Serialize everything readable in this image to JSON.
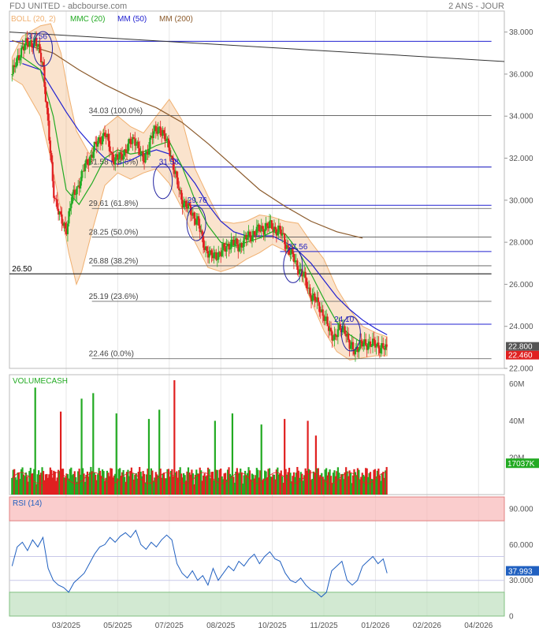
{
  "header": {
    "title": "FDJ UNITED - abcbourse.com",
    "period": "2 ANS - JOUR"
  },
  "legend": [
    {
      "label": "BOLL (20, 2)",
      "color": "#f0b070"
    },
    {
      "label": "MMC (20)",
      "color": "#22aa22"
    },
    {
      "label": "MM (50)",
      "color": "#2020d0"
    },
    {
      "label": "MM (200)",
      "color": "#8b5a2b"
    }
  ],
  "colors": {
    "up": "#22aa22",
    "down": "#e02020",
    "boll": "#f0b070",
    "mmc": "#22aa22",
    "mm50": "#2020d0",
    "mm200": "#8b5a2b",
    "rsi": "#2060c0"
  },
  "chart_data": [
    {
      "type": "candlestick",
      "ylim": [
        22,
        39
      ],
      "y_ticks": [
        "22.000",
        "24.000",
        "26.000",
        "28.000",
        "30.000",
        "32.000",
        "34.000",
        "36.000",
        "38.000"
      ],
      "x_ticks": [
        "03/2025",
        "05/2025",
        "07/2025",
        "08/2025",
        "10/2025",
        "11/2025",
        "01/2026",
        "02/2026",
        "04/2026"
      ],
      "x_tick_pos": [
        0.5,
        2.5,
        4.5,
        6.5,
        8.5,
        10.5,
        12.5,
        14.5,
        16.5
      ],
      "x_range": [
        -1.7,
        17.5
      ],
      "close_path": [
        [
          -1.6,
          36.0
        ],
        [
          -1.2,
          37.3
        ],
        [
          -0.7,
          37.6
        ],
        [
          -0.4,
          36.5
        ],
        [
          -0.2,
          33.5
        ],
        [
          0.0,
          30.5
        ],
        [
          0.3,
          29.0
        ],
        [
          0.5,
          28.6
        ],
        [
          0.7,
          30.0
        ],
        [
          0.9,
          30.5
        ],
        [
          1.2,
          31.5
        ],
        [
          1.6,
          32.5
        ],
        [
          2.0,
          33.2
        ],
        [
          2.3,
          32.0
        ],
        [
          2.6,
          32.0
        ],
        [
          2.9,
          32.6
        ],
        [
          3.2,
          32.9
        ],
        [
          3.5,
          31.8
        ],
        [
          3.8,
          33.0
        ],
        [
          4.1,
          33.5
        ],
        [
          4.5,
          32.5
        ],
        [
          4.8,
          30.8
        ],
        [
          5.0,
          30.0
        ],
        [
          5.3,
          29.5
        ],
        [
          5.6,
          29.0
        ],
        [
          5.8,
          28.0
        ],
        [
          6.1,
          27.3
        ],
        [
          6.5,
          27.5
        ],
        [
          6.9,
          28.0
        ],
        [
          7.2,
          27.8
        ],
        [
          7.6,
          28.3
        ],
        [
          8.0,
          28.6
        ],
        [
          8.4,
          28.8
        ],
        [
          8.8,
          28.5
        ],
        [
          9.2,
          27.5
        ],
        [
          9.5,
          26.8
        ],
        [
          9.7,
          26.4
        ],
        [
          10.0,
          25.5
        ],
        [
          10.3,
          25.0
        ],
        [
          10.5,
          24.5
        ],
        [
          10.7,
          23.8
        ],
        [
          10.9,
          23.5
        ],
        [
          11.1,
          23.8
        ],
        [
          11.3,
          24.0
        ],
        [
          11.5,
          23.0
        ],
        [
          11.7,
          22.9
        ],
        [
          11.9,
          23.1
        ],
        [
          12.2,
          23.2
        ],
        [
          12.5,
          23.1
        ],
        [
          12.8,
          23.0
        ],
        [
          12.95,
          22.8
        ]
      ],
      "mmc_path": [
        [
          -1.2,
          36.8
        ],
        [
          -0.5,
          36.2
        ],
        [
          0.0,
          34.0
        ],
        [
          0.5,
          30.5
        ],
        [
          1.0,
          29.8
        ],
        [
          1.5,
          30.8
        ],
        [
          2.0,
          32.0
        ],
        [
          2.5,
          32.4
        ],
        [
          3.0,
          32.2
        ],
        [
          3.5,
          32.3
        ],
        [
          4.0,
          32.6
        ],
        [
          4.5,
          32.8
        ],
        [
          5.0,
          31.6
        ],
        [
          5.5,
          30.0
        ],
        [
          6.0,
          28.8
        ],
        [
          6.5,
          28.0
        ],
        [
          7.0,
          27.8
        ],
        [
          7.5,
          28.0
        ],
        [
          8.0,
          28.2
        ],
        [
          8.5,
          28.5
        ],
        [
          9.0,
          28.4
        ],
        [
          9.5,
          27.6
        ],
        [
          10.0,
          26.5
        ],
        [
          10.5,
          25.3
        ],
        [
          11.0,
          24.2
        ],
        [
          11.5,
          23.6
        ],
        [
          12.0,
          23.2
        ],
        [
          12.5,
          23.1
        ],
        [
          12.95,
          23.0
        ]
      ],
      "boll_upper": [
        [
          -1.6,
          36.8
        ],
        [
          -1.2,
          37.8
        ],
        [
          -0.5,
          38.3
        ],
        [
          -0.1,
          38.4
        ],
        [
          0.3,
          37.0
        ],
        [
          0.6,
          35.0
        ],
        [
          0.9,
          33.3
        ],
        [
          1.4,
          32.2
        ],
        [
          2.0,
          33.5
        ],
        [
          2.5,
          34.0
        ],
        [
          3.0,
          33.5
        ],
        [
          3.5,
          33.2
        ],
        [
          4.0,
          34.0
        ],
        [
          4.5,
          34.8
        ],
        [
          5.0,
          33.8
        ],
        [
          5.5,
          31.5
        ],
        [
          6.0,
          30.2
        ],
        [
          6.5,
          29.0
        ],
        [
          7.0,
          28.9
        ],
        [
          7.5,
          29.0
        ],
        [
          8.0,
          29.3
        ],
        [
          8.5,
          29.2
        ],
        [
          9.0,
          29.0
        ],
        [
          9.5,
          28.9
        ],
        [
          10.0,
          28.0
        ],
        [
          10.5,
          27.2
        ],
        [
          11.0,
          25.8
        ],
        [
          11.5,
          24.8
        ],
        [
          12.0,
          24.0
        ],
        [
          12.5,
          23.7
        ],
        [
          12.95,
          23.5
        ]
      ],
      "boll_lower": [
        [
          -1.6,
          35.8
        ],
        [
          -1.2,
          35.5
        ],
        [
          -0.5,
          34.0
        ],
        [
          -0.1,
          32.0
        ],
        [
          0.3,
          29.5
        ],
        [
          0.6,
          27.5
        ],
        [
          0.9,
          26.0
        ],
        [
          1.1,
          26.6
        ],
        [
          1.5,
          28.5
        ],
        [
          2.0,
          30.7
        ],
        [
          2.5,
          31.3
        ],
        [
          3.0,
          31.0
        ],
        [
          3.5,
          31.3
        ],
        [
          4.0,
          31.5
        ],
        [
          4.5,
          30.8
        ],
        [
          5.0,
          29.6
        ],
        [
          5.5,
          28.0
        ],
        [
          6.0,
          26.8
        ],
        [
          6.5,
          26.6
        ],
        [
          7.0,
          26.8
        ],
        [
          7.5,
          27.2
        ],
        [
          8.0,
          27.5
        ],
        [
          8.5,
          27.9
        ],
        [
          9.0,
          27.6
        ],
        [
          9.5,
          26.8
        ],
        [
          10.0,
          25.2
        ],
        [
          10.5,
          23.8
        ],
        [
          11.0,
          22.8
        ],
        [
          11.5,
          22.4
        ],
        [
          12.0,
          22.5
        ],
        [
          12.5,
          22.6
        ],
        [
          12.95,
          22.6
        ]
      ],
      "mm50_path": [
        [
          -1.2,
          36.5
        ],
        [
          -0.5,
          36.2
        ],
        [
          0.0,
          35.2
        ],
        [
          0.5,
          34.2
        ],
        [
          1.0,
          33.3
        ],
        [
          1.5,
          32.6
        ],
        [
          2.0,
          32.0
        ],
        [
          2.5,
          31.7
        ],
        [
          3.0,
          31.9
        ],
        [
          3.5,
          32.2
        ],
        [
          4.0,
          32.4
        ],
        [
          4.5,
          32.2
        ],
        [
          5.0,
          31.6
        ],
        [
          5.5,
          30.8
        ],
        [
          6.0,
          29.8
        ],
        [
          6.5,
          29.0
        ],
        [
          7.0,
          28.5
        ],
        [
          7.5,
          28.3
        ],
        [
          8.0,
          28.3
        ],
        [
          8.5,
          28.3
        ],
        [
          9.0,
          28.0
        ],
        [
          9.5,
          27.6
        ],
        [
          10.0,
          27.0
        ],
        [
          10.5,
          26.2
        ],
        [
          11.0,
          25.4
        ],
        [
          11.5,
          24.8
        ],
        [
          12.0,
          24.3
        ],
        [
          12.5,
          23.9
        ],
        [
          12.95,
          23.6
        ]
      ],
      "mm200_path": [
        [
          -1.6,
          37.6
        ],
        [
          0.0,
          37.0
        ],
        [
          1.0,
          36.2
        ],
        [
          2.0,
          35.5
        ],
        [
          3.0,
          34.9
        ],
        [
          4.0,
          34.4
        ],
        [
          5.0,
          33.7
        ],
        [
          6.0,
          32.7
        ],
        [
          7.0,
          31.6
        ],
        [
          8.0,
          30.5
        ],
        [
          9.0,
          29.7
        ],
        [
          10.0,
          29.0
        ],
        [
          11.0,
          28.5
        ],
        [
          12.0,
          28.2
        ]
      ],
      "trendline": [
        [
          -1.7,
          38.0
        ],
        [
          17.5,
          36.6
        ]
      ],
      "horizontal_lines": [
        {
          "y": 37.56,
          "from": -1.7,
          "to": 17.0,
          "color": "#2020d0"
        },
        {
          "y": 31.58,
          "from": 3.8,
          "to": 17.0,
          "color": "#2020d0"
        },
        {
          "y": 29.76,
          "from": 5.1,
          "to": 17.0,
          "color": "#2020d0"
        },
        {
          "y": 27.56,
          "from": 8.8,
          "to": 17.0,
          "color": "#2020d0"
        },
        {
          "y": 24.1,
          "from": 10.8,
          "to": 17.0,
          "color": "#2020d0"
        },
        {
          "y": 26.5,
          "from": -1.7,
          "to": 17.0,
          "color": "#000000"
        }
      ],
      "fibonacci": [
        {
          "level": 34.03,
          "label": "34.03 (100.0%)"
        },
        {
          "level": 31.58,
          "label": "31.58 (78.6%)"
        },
        {
          "level": 29.61,
          "label": "29.61 (61.8%)"
        },
        {
          "level": 28.25,
          "label": "28.25 (50.0%)"
        },
        {
          "level": 26.88,
          "label": "26.88 (38.2%)"
        },
        {
          "level": 25.19,
          "label": "25.19 (23.6%)"
        },
        {
          "level": 22.46,
          "label": "22.46 (0.0%)"
        }
      ],
      "fib_x_start": 1.5,
      "fib_x_end": 17.0,
      "annotations": [
        {
          "x": -1.0,
          "y": 37.56,
          "text": "37.56"
        },
        {
          "x": 4.1,
          "y": 31.58,
          "text": "31.58"
        },
        {
          "x": 5.2,
          "y": 29.76,
          "text": "29.76"
        },
        {
          "x": 9.1,
          "y": 27.56,
          "text": "27.56"
        },
        {
          "x": 10.9,
          "y": 24.1,
          "text": "24.10"
        },
        {
          "x": -1.6,
          "y": 26.5,
          "text": "26.50"
        }
      ],
      "ellipses": [
        {
          "x": -0.4,
          "y": 37.2
        },
        {
          "x": 4.25,
          "y": 30.9
        },
        {
          "x": 5.55,
          "y": 28.9
        },
        {
          "x": 9.3,
          "y": 26.9
        },
        {
          "x": 11.55,
          "y": 23.65
        }
      ],
      "last_price": "22.800",
      "low_price": "22.460"
    },
    {
      "type": "bar",
      "title": "VOLUMECASH",
      "y_ticks": [
        "20M",
        "40M",
        "60M"
      ],
      "ylim": [
        0,
        65
      ],
      "last_value": "17037K"
    },
    {
      "type": "line",
      "title": "RSI (14)",
      "ylim": [
        0,
        100
      ],
      "y_ticks": [
        "0",
        "30.000",
        "60.000",
        "90.000"
      ],
      "overbought": 80,
      "oversold": 20,
      "mid_high": 50,
      "mid_low": 30,
      "last_value": "37.993",
      "values": [
        [
          -1.6,
          42
        ],
        [
          -1.4,
          58
        ],
        [
          -1.2,
          62
        ],
        [
          -1.0,
          55
        ],
        [
          -0.8,
          64
        ],
        [
          -0.6,
          58
        ],
        [
          -0.4,
          66
        ],
        [
          -0.2,
          40
        ],
        [
          0.0,
          30
        ],
        [
          0.2,
          26
        ],
        [
          0.4,
          24
        ],
        [
          0.6,
          20
        ],
        [
          0.8,
          28
        ],
        [
          1.0,
          32
        ],
        [
          1.2,
          36
        ],
        [
          1.4,
          44
        ],
        [
          1.6,
          52
        ],
        [
          1.8,
          58
        ],
        [
          2.0,
          60
        ],
        [
          2.2,
          66
        ],
        [
          2.4,
          62
        ],
        [
          2.6,
          67
        ],
        [
          2.8,
          70
        ],
        [
          3.0,
          66
        ],
        [
          3.2,
          72
        ],
        [
          3.4,
          60
        ],
        [
          3.6,
          56
        ],
        [
          3.8,
          62
        ],
        [
          4.0,
          58
        ],
        [
          4.2,
          64
        ],
        [
          4.4,
          68
        ],
        [
          4.6,
          64
        ],
        [
          4.8,
          44
        ],
        [
          5.0,
          36
        ],
        [
          5.2,
          32
        ],
        [
          5.4,
          38
        ],
        [
          5.6,
          30
        ],
        [
          5.8,
          34
        ],
        [
          6.0,
          26
        ],
        [
          6.2,
          40
        ],
        [
          6.4,
          30
        ],
        [
          6.6,
          36
        ],
        [
          6.8,
          42
        ],
        [
          7.0,
          38
        ],
        [
          7.2,
          46
        ],
        [
          7.4,
          42
        ],
        [
          7.6,
          48
        ],
        [
          7.8,
          52
        ],
        [
          8.0,
          44
        ],
        [
          8.2,
          50
        ],
        [
          8.4,
          54
        ],
        [
          8.6,
          48
        ],
        [
          8.8,
          46
        ],
        [
          9.0,
          36
        ],
        [
          9.2,
          30
        ],
        [
          9.4,
          28
        ],
        [
          9.6,
          32
        ],
        [
          9.8,
          26
        ],
        [
          10.0,
          22
        ],
        [
          10.2,
          20
        ],
        [
          10.4,
          16
        ],
        [
          10.6,
          20
        ],
        [
          10.8,
          38
        ],
        [
          11.0,
          42
        ],
        [
          11.2,
          46
        ],
        [
          11.4,
          30
        ],
        [
          11.6,
          26
        ],
        [
          11.8,
          30
        ],
        [
          12.0,
          42
        ],
        [
          12.2,
          46
        ],
        [
          12.4,
          50
        ],
        [
          12.6,
          44
        ],
        [
          12.8,
          48
        ],
        [
          12.95,
          36
        ]
      ]
    }
  ]
}
